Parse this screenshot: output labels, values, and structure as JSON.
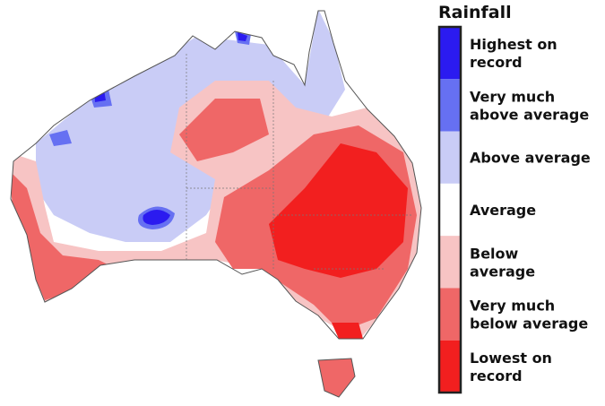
{
  "legend": {
    "title": "Rainfall",
    "items": [
      {
        "lines": [
          "Highest on",
          "record"
        ],
        "color": "#2b1bf0"
      },
      {
        "lines": [
          "Very much",
          "above average"
        ],
        "color": "#6670f2"
      },
      {
        "lines": [
          "Above average"
        ],
        "color": "#c9ccf6"
      },
      {
        "lines": [
          "Average"
        ],
        "color": "#ffffff"
      },
      {
        "lines": [
          "Below",
          "average"
        ],
        "color": "#f7c4c4"
      },
      {
        "lines": [
          "Very much",
          "below average"
        ],
        "color": "#ef6767"
      },
      {
        "lines": [
          "Lowest on",
          "record"
        ],
        "color": "#f21f1f"
      }
    ]
  }
}
